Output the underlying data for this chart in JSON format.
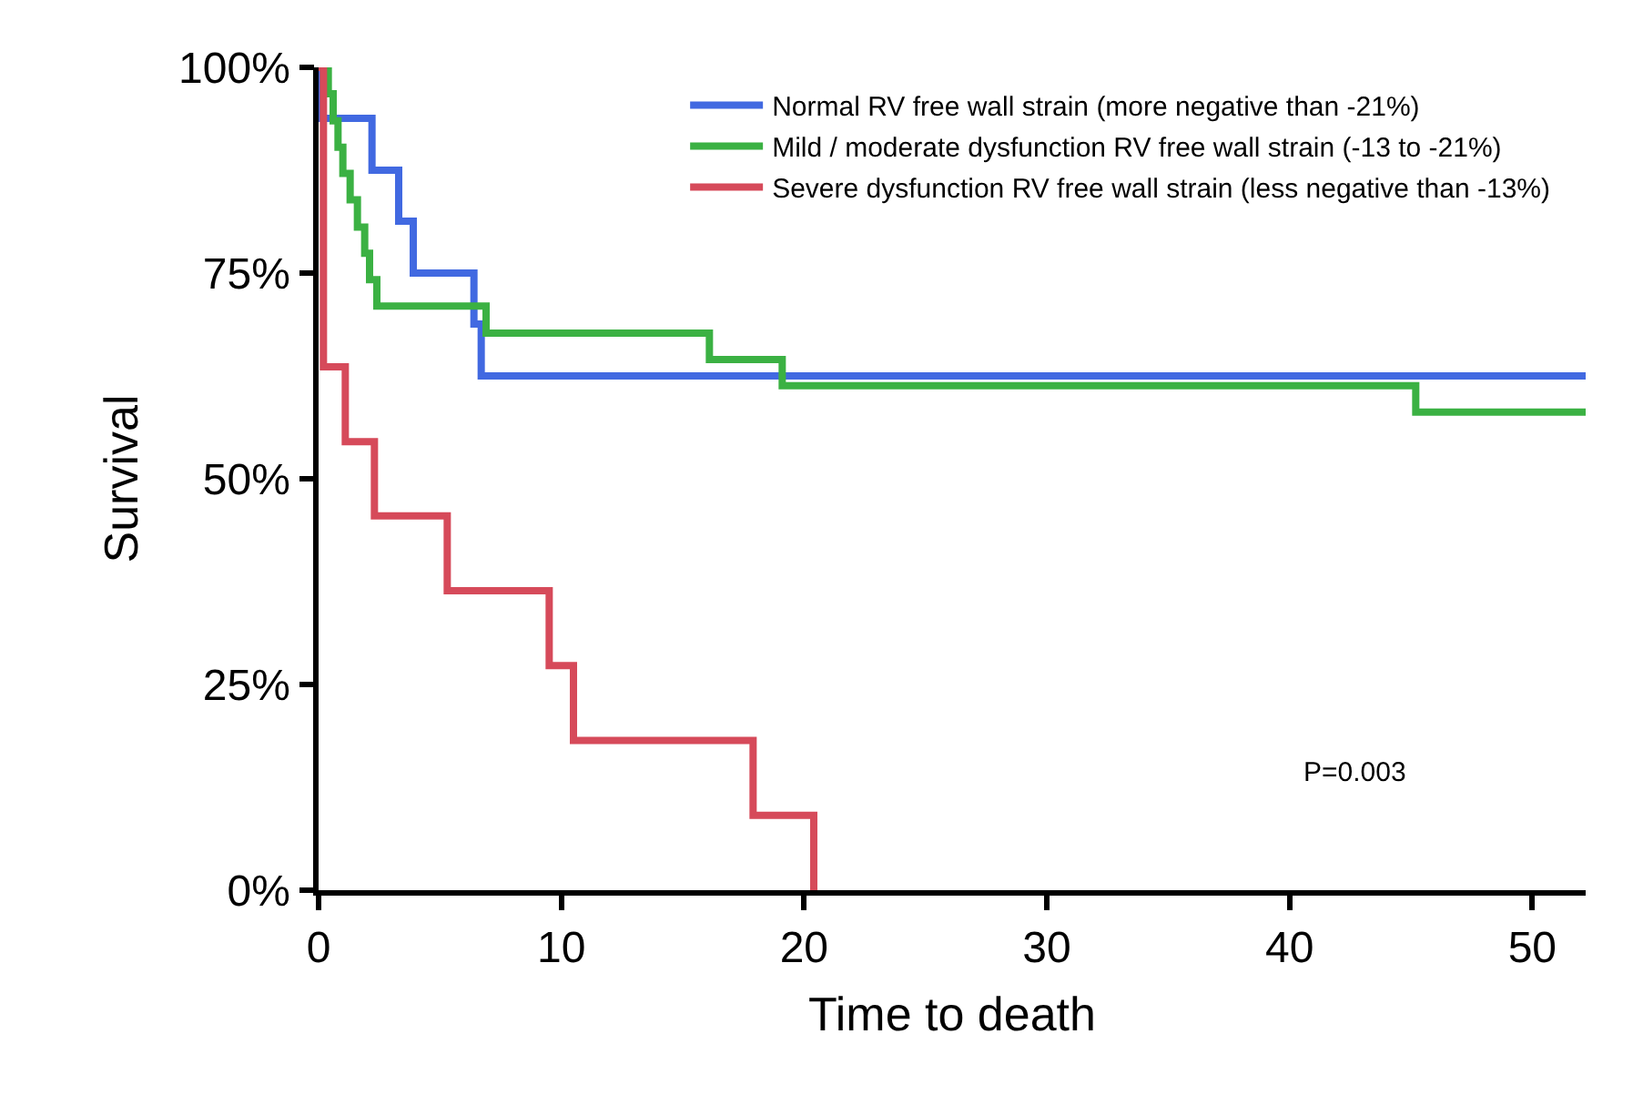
{
  "chart_data": {
    "type": "step",
    "xlabel": "Time to death",
    "ylabel": "Survival",
    "xlim": [
      0,
      52.2
    ],
    "xticks": [
      0,
      10,
      20,
      30,
      40,
      50
    ],
    "ylim": [
      0,
      100
    ],
    "yticks": [
      {
        "value": 0,
        "label": "0%"
      },
      {
        "value": 25,
        "label": "25%"
      },
      {
        "value": 50,
        "label": "50%"
      },
      {
        "value": 75,
        "label": "75%"
      },
      {
        "value": 100,
        "label": "100%"
      }
    ],
    "legend": "top right",
    "marker": "none",
    "line_style": "solid",
    "annotations": [
      "P=0.003"
    ],
    "series": [
      {
        "name": "Normal RV free wall strain (more negative than -21%)",
        "color": "#4169e1",
        "x": [
          0,
          0.15,
          2.2,
          3.3,
          3.9,
          6.4,
          6.7,
          52.2
        ],
        "values": [
          100,
          93.8,
          87.5,
          81.3,
          75,
          68.8,
          62.5,
          62.5
        ]
      },
      {
        "name": "Mild / moderate dysfunction RV free wall strain (-13 to -21%)",
        "color": "#3bb143",
        "x": [
          0,
          0.4,
          0.6,
          0.8,
          1.0,
          1.3,
          1.6,
          1.9,
          2.1,
          2.4,
          6.9,
          16.1,
          19.1,
          45.2,
          52.2
        ],
        "values": [
          100,
          96.8,
          93.5,
          90.3,
          87.1,
          83.9,
          80.6,
          77.4,
          74.2,
          71.0,
          67.7,
          64.5,
          61.3,
          58.1,
          58.1
        ]
      },
      {
        "name": "Severe dysfunction RV free wall strain (less negative than -13%)",
        "color": "#d64a5a",
        "x": [
          0,
          0.2,
          1.1,
          2.3,
          5.3,
          9.5,
          10.5,
          17.9,
          20.4
        ],
        "values": [
          100,
          63.6,
          54.5,
          45.5,
          36.4,
          27.3,
          18.2,
          9.1,
          0
        ]
      }
    ]
  }
}
